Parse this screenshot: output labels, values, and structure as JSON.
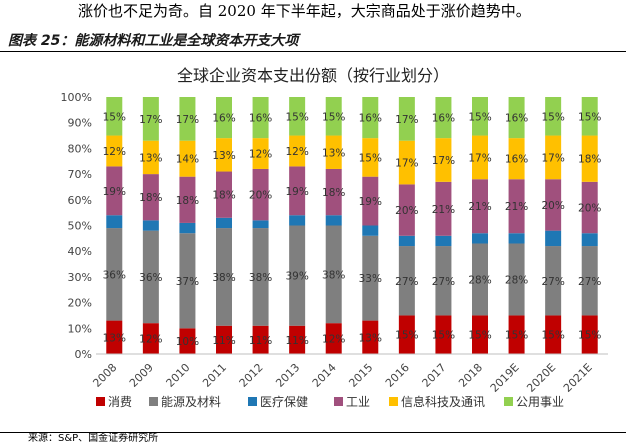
{
  "intro_text": "涨价也不足为奇。自 2020 年下半年起，大宗商品处于涨价趋势中。",
  "figure_title": "图表 25：能源材料和工业是全球资本开支大项",
  "source": "来源：S&P、国金证券研究所",
  "chart_data": {
    "type": "bar",
    "stacked": true,
    "percent": true,
    "title": "全球企业资本支出份额（按行业划分）",
    "xlabel": "",
    "ylabel": "",
    "ylim": [
      0,
      100
    ],
    "y_ticks": [
      "0%",
      "10%",
      "20%",
      "30%",
      "40%",
      "50%",
      "60%",
      "70%",
      "80%",
      "90%",
      "100%"
    ],
    "categories": [
      "2008",
      "2009",
      "2010",
      "2011",
      "2012",
      "2013",
      "2014",
      "2015",
      "2016",
      "2017",
      "2018",
      "2019E",
      "2020E",
      "2021E"
    ],
    "legend_position": "bottom",
    "grid": false,
    "series": [
      {
        "name": "消费",
        "color": "#c00000",
        "values": [
          13,
          12,
          10,
          11,
          11,
          11,
          12,
          13,
          15,
          15,
          15,
          15,
          15,
          15
        ],
        "labels": [
          "13%",
          "12%",
          "10%",
          "11%",
          "11%",
          "11%",
          "12%",
          "13%",
          "15%",
          "15%",
          "15%",
          "15%",
          "15%",
          "15%"
        ]
      },
      {
        "name": "能源及材料",
        "color": "#7f7f7f",
        "values": [
          36,
          36,
          37,
          38,
          38,
          39,
          38,
          33,
          27,
          27,
          28,
          28,
          27,
          27
        ],
        "labels": [
          "36%",
          "36%",
          "37%",
          "38%",
          "38%",
          "39%",
          "38%",
          "33%",
          "27%",
          "27%",
          "28%",
          "28%",
          "27%",
          "27%"
        ]
      },
      {
        "name": "医疗保健",
        "color": "#1f77b4",
        "values": [
          5,
          4,
          4,
          4,
          3,
          4,
          4,
          4,
          4,
          4,
          4,
          4,
          6,
          5
        ],
        "labels": [
          "",
          "",
          "",
          "",
          "",
          "",
          "",
          "",
          "",
          "",
          "",
          "",
          "",
          ""
        ]
      },
      {
        "name": "工业",
        "color": "#a0507d",
        "values": [
          19,
          18,
          18,
          18,
          20,
          19,
          18,
          19,
          20,
          21,
          21,
          21,
          20,
          20
        ],
        "labels": [
          "19%",
          "18%",
          "18%",
          "18%",
          "20%",
          "19%",
          "18%",
          "19%",
          "20%",
          "21%",
          "21%",
          "21%",
          "20%",
          "20%"
        ]
      },
      {
        "name": "信息科技及通讯",
        "color": "#ffc000",
        "values": [
          12,
          13,
          14,
          13,
          12,
          12,
          13,
          15,
          17,
          17,
          17,
          16,
          17,
          18
        ],
        "labels": [
          "12%",
          "13%",
          "14%",
          "13%",
          "12%",
          "12%",
          "13%",
          "15%",
          "17%",
          "17%",
          "17%",
          "16%",
          "17%",
          "18%"
        ]
      },
      {
        "name": "公用事业",
        "color": "#92d050",
        "values": [
          15,
          17,
          17,
          16,
          16,
          15,
          15,
          16,
          17,
          16,
          15,
          16,
          15,
          15
        ],
        "labels": [
          "15%",
          "17%",
          "17%",
          "16%",
          "16%",
          "15%",
          "15%",
          "16%",
          "17%",
          "16%",
          "15%",
          "16%",
          "15%",
          "15%"
        ]
      }
    ]
  }
}
